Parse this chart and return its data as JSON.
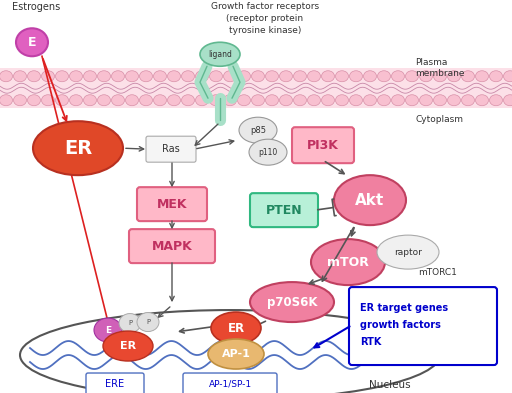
{
  "bg_color": "#ffffff",
  "plasma_membrane_label": "Plasma\nmembrane",
  "cytoplasm_label": "Cytoplasm",
  "nucleus_label": "Nucleus",
  "estrogens_label": "Estrogens",
  "growth_factor_label": "Growth factor receptors\n(receptor protein\ntyrosine kinase)",
  "ligand_color": "#a8e0c8",
  "pink_oval_color": "#f080a0",
  "pink_box_bg": "#ffb8c8",
  "pink_box_ec": "#e06080",
  "green_box_bg": "#b8f0d8",
  "green_box_ec": "#30b880",
  "ER_large_color": "#e04828",
  "E_circle_color": "#e060c0",
  "raptor_color": "#f0f0f0",
  "AP1_color": "#e8b870",
  "ER_small_color": "#e84830",
  "E_small_color": "#d060b8",
  "P_circle_color": "#e0e0e0",
  "dna_color": "#5070c0",
  "ere_box_color": "#5070c0",
  "text_blue": "#0000cc",
  "red_arrow_color": "#dd2020",
  "arrow_color": "#555555",
  "mem_oval_fc": "#f8c0d0",
  "mem_oval_ec": "#d890a8",
  "mem_bg": "#fce0e8"
}
